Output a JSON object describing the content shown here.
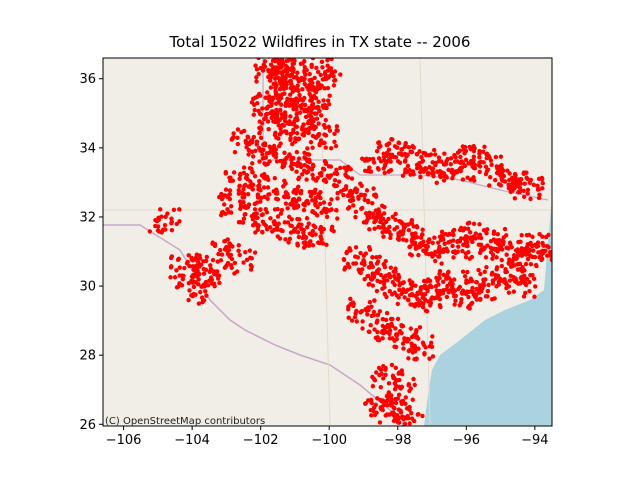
{
  "chart_data": {
    "type": "scatter",
    "title": "Total 15022 Wildfires in TX state -- 2006",
    "xlabel": "",
    "ylabel": "",
    "xlim": [
      -106.6,
      -93.5
    ],
    "ylim": [
      25.95,
      36.6
    ],
    "xticks": [
      -106,
      -104,
      -102,
      -100,
      -98,
      -96,
      -94
    ],
    "xtick_labels": [
      "−106",
      "−104",
      "−102",
      "−100",
      "−98",
      "−96",
      "−94"
    ],
    "yticks": [
      26,
      28,
      30,
      32,
      34,
      36
    ],
    "ytick_labels": [
      "26",
      "28",
      "30",
      "32",
      "34",
      "36"
    ],
    "marker_color": "#ff0000",
    "marker_shape": "circle",
    "basemap": "OpenStreetMap",
    "attribution": "(C) OpenStreetMap contributors",
    "grid": false,
    "legend": "none",
    "total_points": 15022,
    "series": [
      {
        "values_description_points": [
          [
            -101.8,
            36.4
          ],
          [
            -101.5,
            36.2
          ],
          [
            -101.2,
            36.3
          ],
          [
            -100.9,
            36.1
          ],
          [
            -100.3,
            36.4
          ],
          [
            -100.1,
            36.0
          ],
          [
            -101.7,
            35.8
          ],
          [
            -101.3,
            35.6
          ],
          [
            -100.8,
            35.7
          ],
          [
            -100.4,
            35.5
          ],
          [
            -101.9,
            35.2
          ],
          [
            -101.4,
            35.1
          ],
          [
            -100.9,
            35.2
          ],
          [
            -100.5,
            35.0
          ],
          [
            -101.6,
            34.7
          ],
          [
            -101.1,
            34.6
          ],
          [
            -100.7,
            34.5
          ],
          [
            -100.2,
            34.3
          ],
          [
            -102.4,
            34.2
          ],
          [
            -102.0,
            33.9
          ],
          [
            -101.5,
            33.8
          ],
          [
            -101.0,
            33.6
          ],
          [
            -100.5,
            33.4
          ],
          [
            -102.6,
            33.1
          ],
          [
            -102.2,
            32.9
          ],
          [
            -101.7,
            32.8
          ],
          [
            -101.2,
            32.6
          ],
          [
            -100.7,
            32.5
          ],
          [
            -100.2,
            32.3
          ],
          [
            -102.8,
            32.4
          ],
          [
            -102.3,
            32.1
          ],
          [
            -101.8,
            31.9
          ],
          [
            -101.3,
            31.7
          ],
          [
            -100.8,
            31.5
          ],
          [
            -100.3,
            31.4
          ],
          [
            -99.8,
            33.2
          ],
          [
            -99.4,
            32.8
          ],
          [
            -99.0,
            32.5
          ],
          [
            -98.6,
            33.6
          ],
          [
            -98.2,
            33.9
          ],
          [
            -97.8,
            33.7
          ],
          [
            -97.4,
            33.5
          ],
          [
            -97.0,
            33.3
          ],
          [
            -96.6,
            33.6
          ],
          [
            -96.2,
            33.4
          ],
          [
            -95.8,
            33.7
          ],
          [
            -95.4,
            33.5
          ],
          [
            -95.0,
            33.2
          ],
          [
            -94.6,
            33.0
          ],
          [
            -94.2,
            32.8
          ],
          [
            -98.8,
            32.0
          ],
          [
            -98.4,
            31.8
          ],
          [
            -98.0,
            31.6
          ],
          [
            -97.6,
            31.4
          ],
          [
            -97.2,
            31.2
          ],
          [
            -96.8,
            31.0
          ],
          [
            -96.4,
            31.3
          ],
          [
            -96.0,
            31.5
          ],
          [
            -95.6,
            31.1
          ],
          [
            -95.2,
            31.3
          ],
          [
            -94.8,
            31.0
          ],
          [
            -94.4,
            30.8
          ],
          [
            -94.0,
            31.2
          ],
          [
            -93.8,
            30.9
          ],
          [
            -99.2,
            30.8
          ],
          [
            -98.8,
            30.5
          ],
          [
            -98.4,
            30.2
          ],
          [
            -98.0,
            30.0
          ],
          [
            -97.6,
            29.8
          ],
          [
            -97.2,
            29.6
          ],
          [
            -96.8,
            29.9
          ],
          [
            -96.4,
            30.1
          ],
          [
            -96.0,
            29.7
          ],
          [
            -95.6,
            29.9
          ],
          [
            -95.2,
            30.2
          ],
          [
            -94.8,
            30.4
          ],
          [
            -94.4,
            30.0
          ],
          [
            -99.0,
            29.3
          ],
          [
            -98.6,
            29.0
          ],
          [
            -98.2,
            28.7
          ],
          [
            -97.8,
            28.5
          ],
          [
            -97.4,
            28.2
          ],
          [
            -98.5,
            26.6
          ],
          [
            -98.1,
            26.4
          ],
          [
            -97.7,
            26.2
          ],
          [
            -97.9,
            27.0
          ],
          [
            -98.3,
            27.4
          ],
          [
            -103.9,
            30.5
          ],
          [
            -103.6,
            30.3
          ],
          [
            -104.2,
            30.6
          ],
          [
            -103.0,
            31.0
          ],
          [
            -102.6,
            30.7
          ],
          [
            -104.8,
            31.9
          ],
          [
            -104.0,
            29.8
          ]
        ]
      }
    ]
  }
}
